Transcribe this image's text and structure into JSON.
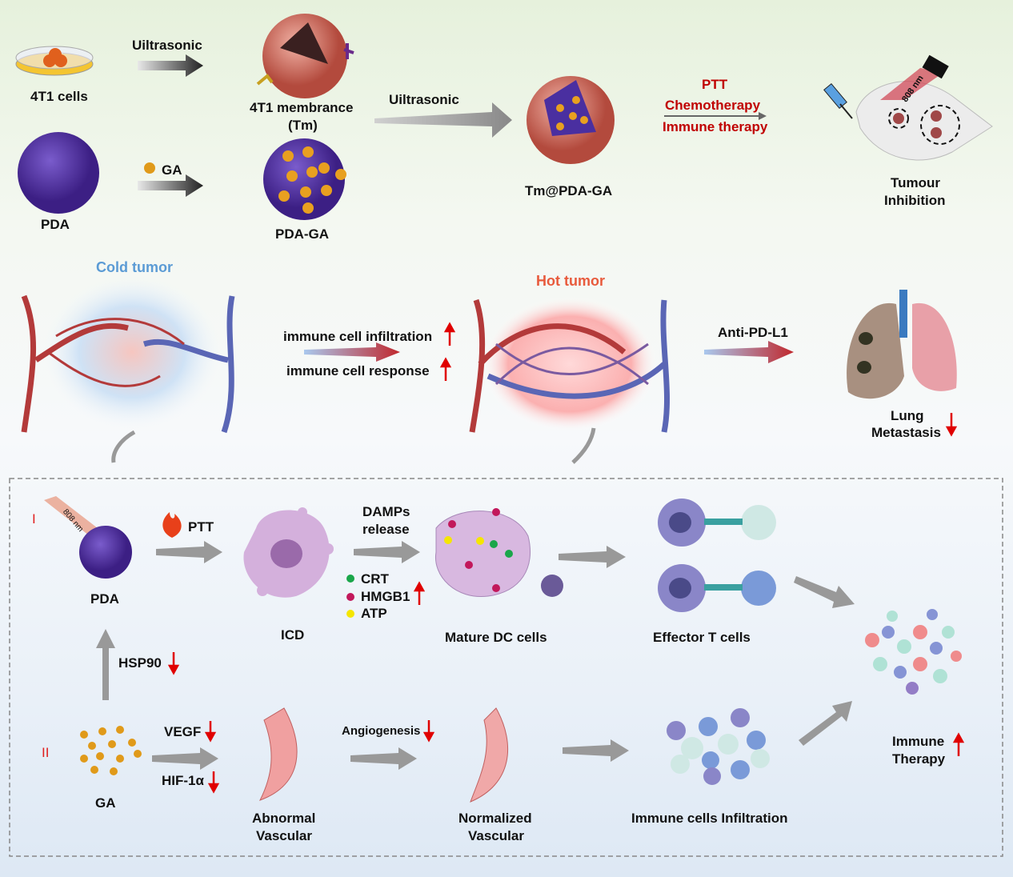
{
  "top": {
    "cells_label": "4T1 cells",
    "ultrasonic_1": "Uiltrasonic",
    "membrane_label_1": "4T1 membrance",
    "membrane_label_2": "(Tm)",
    "ga_label": "GA",
    "pda_label": "PDA",
    "pda_ga_label": "PDA-GA",
    "ultrasonic_2": "Uiltrasonic",
    "product_label": "Tm@PDA-GA",
    "therapies": [
      "PTT",
      "Chemotherapy",
      "Immune therapy"
    ],
    "laser_label": "808 nm",
    "outcome_1": "Tumour",
    "outcome_2": "Inhibition"
  },
  "middle": {
    "cold_tumor": "Cold tumor",
    "hot_tumor": "Hot tumor",
    "effect_1": "immune cell infiltration",
    "effect_2": "immune cell response",
    "antibody": "Anti-PD-L1",
    "lung_1": "Lung",
    "lung_2": "Metastasis"
  },
  "bottom": {
    "path_1": "I",
    "path_2": "II",
    "laser_label": "808 nm",
    "pda_label": "PDA",
    "ptt_label": "PTT",
    "damps_1": "DAMPs",
    "damps_2": "release",
    "icd_label": "ICD",
    "damps_items": [
      {
        "label": "CRT",
        "color": "#1aa64a"
      },
      {
        "label": "HMGB1",
        "color": "#c2185b"
      },
      {
        "label": "ATP",
        "color": "#f5e600"
      }
    ],
    "dc_label": "Mature DC cells",
    "t_label": "Effector T cells",
    "hsp90_label": "HSP90",
    "ga_label": "GA",
    "vegf_label": "VEGF",
    "hif_label": "HIF-1α",
    "angio_label": "Angiogenesis",
    "abnormal_1": "Abnormal",
    "abnormal_2": "Vascular",
    "normalized_1": "Normalized",
    "normalized_2": "Vascular",
    "infiltration_label": "Immune cells Infiltration",
    "therapy_1": "Immune",
    "therapy_2": "Therapy"
  },
  "colors": {
    "up_arrow": "#e00000",
    "down_arrow": "#e00000",
    "pda": "#5b3aa8",
    "ga": "#e09a1a",
    "artery": "#b33a3a",
    "vein": "#5a66b5"
  }
}
